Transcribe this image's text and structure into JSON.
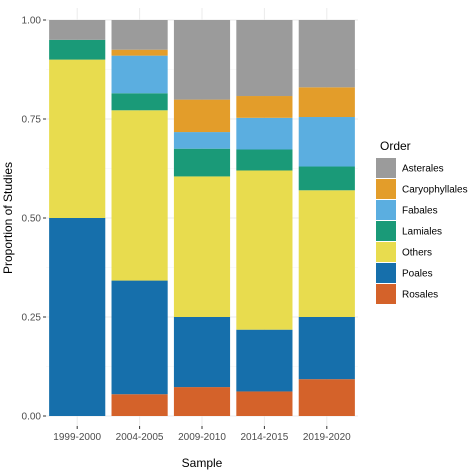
{
  "chart_data": {
    "type": "bar",
    "stacked": true,
    "orientation": "vertical",
    "categories": [
      "1999-2000",
      "2004-2005",
      "2009-2010",
      "2014-2015",
      "2019-2020"
    ],
    "series": [
      {
        "name": "Rosales",
        "color": "#d4622a",
        "values": [
          0.0,
          0.055,
          0.073,
          0.062,
          0.093
        ]
      },
      {
        "name": "Poales",
        "color": "#166fab",
        "values": [
          0.5,
          0.287,
          0.177,
          0.156,
          0.157
        ]
      },
      {
        "name": "Others",
        "color": "#e8dc4e",
        "values": [
          0.4,
          0.43,
          0.355,
          0.402,
          0.32
        ]
      },
      {
        "name": "Lamiales",
        "color": "#1a9a78",
        "values": [
          0.05,
          0.043,
          0.07,
          0.053,
          0.06
        ]
      },
      {
        "name": "Fabales",
        "color": "#5baee0",
        "values": [
          0.0,
          0.095,
          0.042,
          0.08,
          0.125
        ]
      },
      {
        "name": "Caryophyllales",
        "color": "#e39d2a",
        "values": [
          0.0,
          0.015,
          0.082,
          0.055,
          0.075
        ]
      },
      {
        "name": "Asterales",
        "color": "#9b9b9b",
        "values": [
          0.05,
          0.075,
          0.201,
          0.192,
          0.17
        ]
      }
    ],
    "xlabel": "Sample",
    "ylabel": "Proportion of Studies",
    "ylim": [
      0,
      1
    ],
    "yticks": [
      "0.00",
      "0.25",
      "0.50",
      "0.75",
      "1.00"
    ],
    "grid": true,
    "legend": {
      "title": "Order",
      "placement": "right",
      "entries": [
        {
          "label": "Asterales",
          "color": "#9b9b9b"
        },
        {
          "label": "Caryophyllales",
          "color": "#e39d2a"
        },
        {
          "label": "Fabales",
          "color": "#5baee0"
        },
        {
          "label": "Lamiales",
          "color": "#1a9a78"
        },
        {
          "label": "Others",
          "color": "#e8dc4e"
        },
        {
          "label": "Poales",
          "color": "#166fab"
        },
        {
          "label": "Rosales",
          "color": "#d4622a"
        }
      ]
    }
  }
}
